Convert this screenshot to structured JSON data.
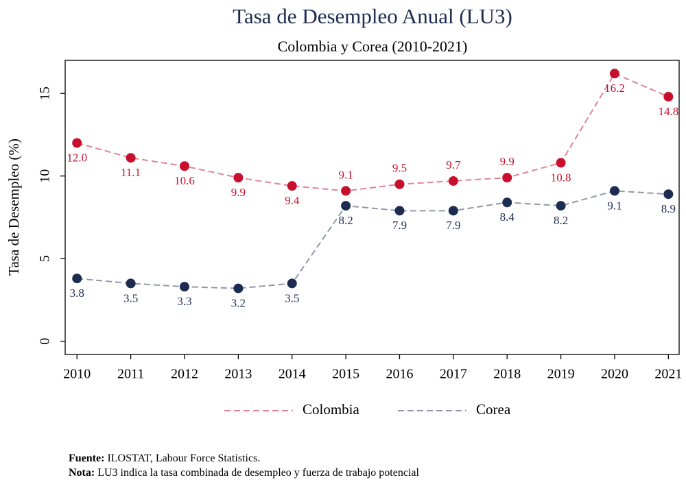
{
  "chart_data": {
    "type": "line",
    "title": "Tasa de Desempleo Anual (LU3)",
    "subtitle": "Colombia y Corea (2010-2021)",
    "y_label": "Tasa de Desempleo (%)",
    "x": [
      2010,
      2011,
      2012,
      2013,
      2014,
      2015,
      2016,
      2017,
      2018,
      2019,
      2020,
      2021
    ],
    "xlim": [
      2009.78,
      2021.2
    ],
    "xticks": [
      2010,
      2011,
      2012,
      2013,
      2014,
      2015,
      2016,
      2017,
      2018,
      2019,
      2020,
      2021
    ],
    "ylim": [
      -0.8,
      17
    ],
    "yticks": [
      0,
      5,
      10,
      15
    ],
    "grid": false,
    "legend": "bottom",
    "series": [
      {
        "name": "Colombia",
        "color": "#c8102e",
        "line_color": "#e38298",
        "values": [
          12.0,
          11.1,
          10.6,
          9.9,
          9.4,
          9.1,
          9.5,
          9.7,
          9.9,
          10.8,
          16.2,
          14.8
        ],
        "value_labels": [
          "12.0",
          "11.1",
          "10.6",
          "9.9",
          "9.4",
          "9.1",
          "9.5",
          "9.7",
          "9.9",
          "10.8",
          "16.2",
          "14.8"
        ]
      },
      {
        "name": "Corea",
        "color": "#1c2b50",
        "line_color": "#9096ad",
        "values": [
          3.8,
          3.5,
          3.3,
          3.2,
          3.5,
          8.2,
          7.9,
          7.9,
          8.4,
          8.2,
          9.1,
          8.9
        ]
      }
    ],
    "notes": [
      {
        "label": "Fuente:",
        "text": "ILOSTAT, Labour Force Statistics."
      },
      {
        "label": "Nota:",
        "text": "LU3 indica la tasa combinada de desempleo y fuerza de trabajo potencial"
      }
    ]
  }
}
